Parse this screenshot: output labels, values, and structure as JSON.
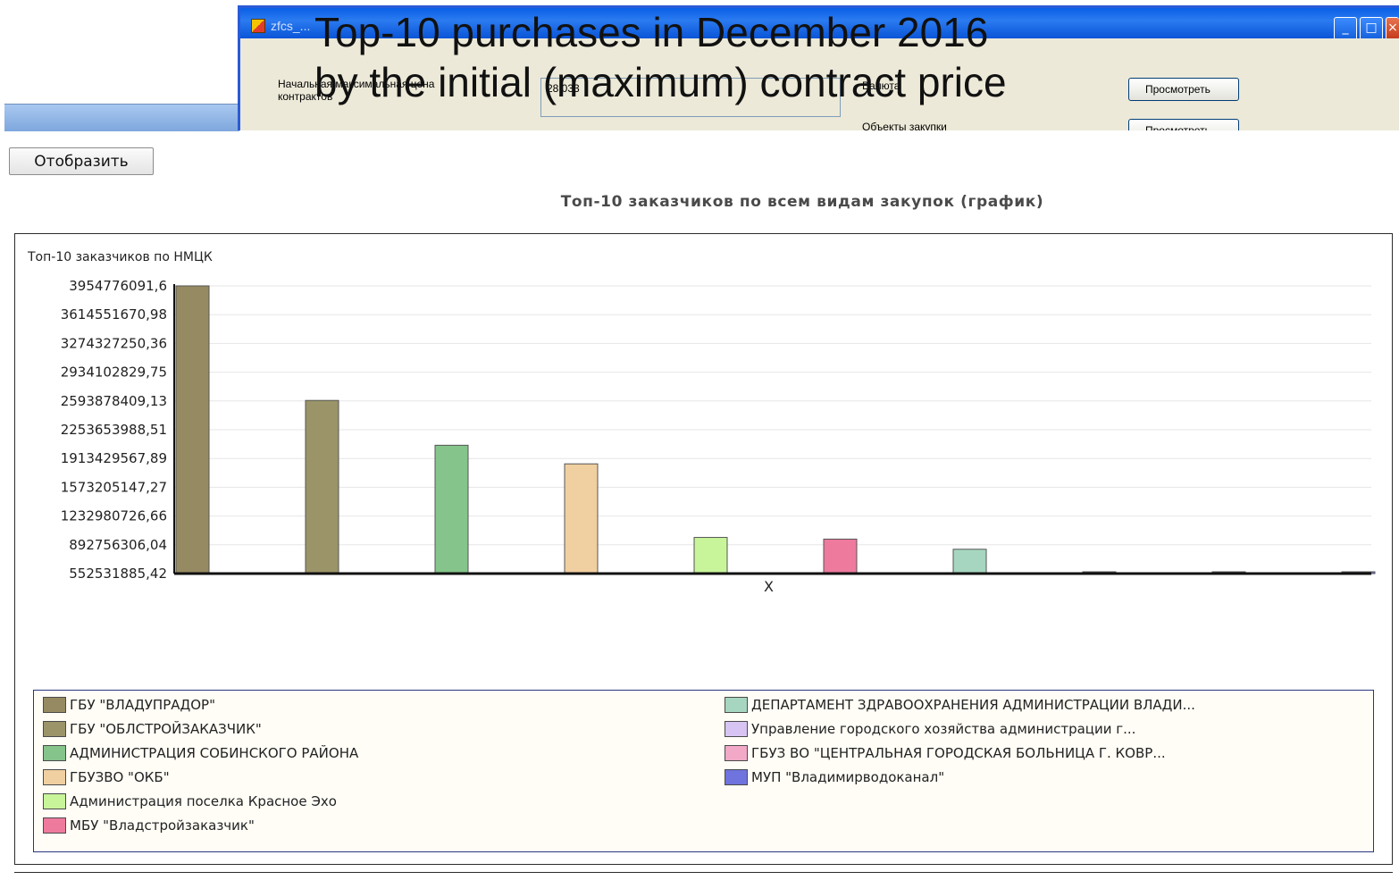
{
  "slide": {
    "title_line1": "Top-10 purchases in December 2016",
    "title_line2": "by the initial (maximum) contract price"
  },
  "background_window": {
    "title": "zfcs_...",
    "label_price": "Начальная максимальная цена контрактов",
    "price_value": "28 033",
    "label_currency": "Валюта",
    "view_button": "Просмотреть",
    "label_objects": "Объекты закупки",
    "view_button_2": "Просмотреть"
  },
  "toolbar": {
    "display_label": "Отобразить"
  },
  "chart_heading": "Топ-10 заказчиков по всем видам закупок (график)",
  "chart_data": {
    "type": "bar",
    "ylabel": "Топ-10 заказчиков по НМЦК",
    "xlabel": "X",
    "ylim": [
      552531885.42,
      3954776091.6
    ],
    "yticks": [
      "3954776091,6",
      "3614551670,98",
      "3274327250,36",
      "2934102829,75",
      "2593878409,13",
      "2253653988,51",
      "1913429567,89",
      "1573205147,27",
      "1232980726,66",
      "892756306,04",
      "552531885,42"
    ],
    "categories": [
      "ГБУ \"ВЛАДУПРАДОР\"",
      "ГБУ \"ОБЛСТРОЙЗАКАЗЧИК\"",
      "АДМИНИСТРАЦИЯ СОБИНСКОГО РАЙОНА",
      "ГБУЗВО \"ОКБ\"",
      "Администрация поселка Красное Эхо",
      "МБУ \"Владстройзаказчик\"",
      "ДЕПАРТАМЕНТ ЗДРАВООХРАНЕНИЯ АДМИНИСТРАЦИИ ВЛАДИ...",
      "Управление городского хозяйства администрации г...",
      "ГБУЗ ВО \"ЦЕНТРАЛЬНАЯ ГОРОДСКАЯ БОЛЬНИЦА Г. КОВР...",
      "МУП \"Владимирводоканал\""
    ],
    "values": [
      3955000000,
      2600000000,
      2070000000,
      1850000000,
      980000000,
      960000000,
      840000000,
      570000000,
      560000000,
      555000000
    ],
    "colors": [
      "#958a61",
      "#9b9468",
      "#85c48a",
      "#f0cfa0",
      "#c8f59a",
      "#ee7a9e",
      "#a6d6bf",
      "#d8c4f3",
      "#f1a9c7",
      "#6f73dd"
    ],
    "grid": true,
    "legend_position": "bottom"
  }
}
